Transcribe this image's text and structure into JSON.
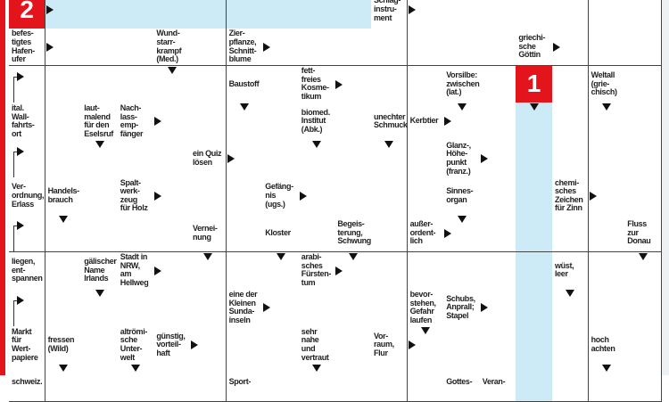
{
  "puzzle": {
    "colors": {
      "accent_red": "#e3141c",
      "solution_blue": "#cdeaf7",
      "grid_line": "#444444"
    },
    "rows": [
      [
        {
          "t": "red",
          "text": "2",
          "arrow": "right"
        },
        "B",
        "B",
        "B",
        "B",
        "B",
        "B",
        "B",
        "B",
        "B",
        {
          "t": "clue",
          "text": "Schlag-\ninstru-\nment",
          "arrow": "right"
        },
        "",
        "",
        "",
        "",
        "",
        "",
        ""
      ],
      [
        {
          "t": "clue",
          "text": "befes-\ntigtes\nHafen-\nufer",
          "arrow": "right"
        },
        "",
        "",
        "",
        {
          "t": "clue",
          "text": "Wund-\nstarr-\nkrampf\n(Med.)",
          "arrow": "down"
        },
        "",
        {
          "t": "clue",
          "text": "Zier-\npflanze,\nSchnitt-\nblume",
          "arrow": "right"
        },
        "",
        "",
        "",
        "",
        "",
        "",
        "",
        {
          "t": "clue",
          "text": "griechi-\nsche\nGöttin",
          "arrow": "right"
        },
        "",
        "",
        ""
      ],
      [
        {
          "t": "bent"
        },
        "",
        "",
        "",
        "",
        "",
        {
          "t": "clue",
          "text": "Baustoff",
          "arrow": "down"
        },
        "",
        {
          "t": "clue",
          "text": "fett-\nfreies\nKosme-\ntikum",
          "arrow": "right"
        },
        "",
        "",
        "",
        {
          "t": "clue",
          "text": "Vorsilbe:\nzwischen\n(lat.)",
          "arrow": "down"
        },
        "",
        {
          "t": "red",
          "text": "1",
          "arrow": "down"
        },
        "",
        {
          "t": "clue",
          "text": "Weltall\n(grie-\nchisch)",
          "arrow": "down"
        },
        ""
      ],
      [
        {
          "t": "clue",
          "text": "ital.\nWall-\nfahrts-\nort"
        },
        "",
        {
          "t": "clue",
          "text": "laut-\nmalend\nfür den\nEselsruf",
          "arrow": "down"
        },
        {
          "t": "clue",
          "text": "Nach-\nlass-\nemp-\nfänger",
          "arrow": "right"
        },
        "",
        "",
        "",
        "",
        {
          "t": "clue",
          "text": "biomed.\nInstitut\n(Abk.)",
          "arrow": "down"
        },
        "",
        {
          "t": "clue",
          "text": "unechter\nSchmuck",
          "arrow": "down"
        },
        {
          "t": "clue",
          "text": "Kerbtier",
          "arrow": "right"
        },
        "",
        "",
        "B",
        "",
        "",
        ""
      ],
      [
        {
          "t": "bent"
        },
        "",
        "",
        "",
        "",
        {
          "t": "clue",
          "text": "ein Quiz\nlösen",
          "arrow": "right"
        },
        "",
        "",
        "",
        "",
        "",
        "",
        {
          "t": "clue",
          "text": "Glanz-,\nHöhe-\npunkt\n(franz.)",
          "arrow": "right"
        },
        "",
        "B",
        "",
        "",
        ""
      ],
      [
        {
          "t": "clue",
          "text": "Ver-\nordnung,\nErlass"
        },
        {
          "t": "clue",
          "text": "Handels-\nbrauch",
          "arrow": "down"
        },
        "",
        {
          "t": "clue",
          "text": "Spalt-\nwerk-\nzeug\nfür Holz",
          "arrow": "right"
        },
        "",
        "",
        "",
        {
          "t": "clue",
          "text": "Gefäng-\nnis (ugs.)",
          "arrow": "right"
        },
        "",
        "",
        "",
        "",
        {
          "t": "clue",
          "text": "Sinnes-\norgan",
          "arrow": "down"
        },
        "",
        "B",
        {
          "t": "clue",
          "text": "chemi-\nsches\nZeichen\nfür Zinn",
          "arrow": "right"
        },
        "",
        ""
      ],
      [
        {
          "t": "bent"
        },
        "",
        "",
        "",
        "",
        {
          "t": "clue",
          "text": "Vernei-\nnung",
          "arrow": "down"
        },
        "",
        {
          "t": "clue",
          "text": "Kloster",
          "arrow": "down"
        },
        "",
        {
          "t": "clue",
          "text": "Begeis-\nterung,\nSchwung",
          "arrow": "down"
        },
        "",
        {
          "t": "clue",
          "text": "außer-\nordent-\nlich",
          "arrow": "right"
        },
        "",
        "",
        "B",
        "",
        "",
        {
          "t": "clue",
          "text": "Fluss\nzur\nDonau",
          "arrow": "down"
        }
      ],
      [
        {
          "t": "clue",
          "text": "liegen,\nent-\nspannen"
        },
        "",
        {
          "t": "clue",
          "text": "gälischer\nName\nIrlands",
          "arrow": "down"
        },
        {
          "t": "clue",
          "text": "Stadt in\nNRW,\nam\nHellweg",
          "arrow": "right"
        },
        "",
        "",
        "",
        "",
        {
          "t": "clue",
          "text": "arabi-\nsches\nFürsten-\ntum",
          "arrow": "right"
        },
        "",
        "",
        "",
        "",
        "",
        "B",
        {
          "t": "clue",
          "text": "wüst,\nleer",
          "arrow": "down"
        },
        "",
        ""
      ],
      [
        {
          "t": "bent"
        },
        "",
        "",
        "",
        "",
        "",
        {
          "t": "clue",
          "text": "eine der\nKleinen\nSunda-\ninseln",
          "arrow": "right"
        },
        "",
        "",
        "",
        "",
        {
          "t": "clue",
          "text": "bevor-\nstehen,\nGefahr\nlaufen",
          "arrow": "down"
        },
        {
          "t": "clue",
          "text": "Schubs,\nAnprall;\nStapel",
          "arrow": "right"
        },
        "",
        "B",
        "",
        "",
        ""
      ],
      [
        {
          "t": "clue",
          "text": "Markt\nfür\nWert-\npapiere"
        },
        {
          "t": "clue",
          "text": "fressen\n(Wild)",
          "arrow": "down"
        },
        "",
        {
          "t": "clue",
          "text": "altrömi-\nsche\nUnter-\nwelt",
          "arrow": "down"
        },
        {
          "t": "clue",
          "text": "günstig,\nvorteil-\nhaft",
          "arrow": "right"
        },
        "",
        "",
        "",
        {
          "t": "clue",
          "text": "sehr\nnahe\nund\nvertraut",
          "arrow": "down"
        },
        "",
        {
          "t": "clue",
          "text": "Vor-\nraum,\nFlur",
          "arrow": "right"
        },
        "",
        "",
        "",
        "B",
        "",
        {
          "t": "clue",
          "text": "hoch\nachten",
          "arrow": "down"
        },
        ""
      ],
      [
        {
          "t": "clue",
          "text": "schweiz."
        },
        "",
        "",
        "",
        "",
        "",
        {
          "t": "clue",
          "text": "Sport-"
        },
        "",
        "",
        "",
        "",
        "",
        {
          "t": "clue",
          "text": "Gottes-"
        },
        {
          "t": "clue",
          "text": "Veran-"
        },
        "B",
        "",
        "",
        ""
      ]
    ]
  }
}
